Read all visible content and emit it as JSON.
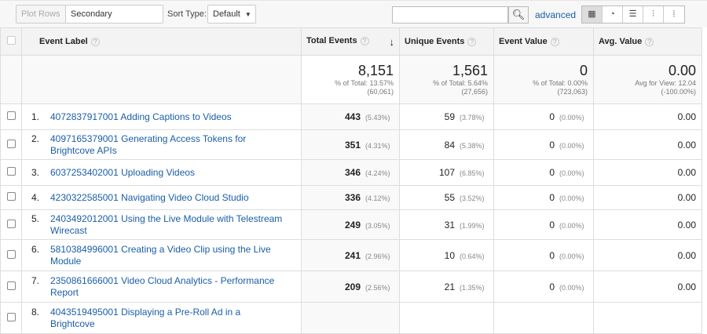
{
  "toolbar": {
    "plot_rows": "Plot Rows",
    "secondary_dimension": "Secondary dimension",
    "sort_type_label": "Sort Type:",
    "sort_type_value": "Default",
    "search_value": "",
    "advanced": "advanced",
    "views": [
      "table-icon",
      "pie-icon",
      "bar-icon",
      "comparison-icon",
      "pivot-icon"
    ]
  },
  "headers": {
    "label": "Event Label",
    "total": "Total Events",
    "unique": "Unique Events",
    "value": "Event Value",
    "avg": "Avg. Value"
  },
  "summary": {
    "total": {
      "value": "8,151",
      "pct": "% of Total: 13.57%",
      "of": "(60,061)"
    },
    "unique": {
      "value": "1,561",
      "pct": "% of Total: 5.64%",
      "of": "(27,656)"
    },
    "value": {
      "value": "0",
      "pct": "% of Total: 0.00%",
      "of": "(723,063)"
    },
    "avg": {
      "value": "0.00",
      "pct": "Avg for View: 12.04",
      "of": "(-100.00%)"
    }
  },
  "rows": [
    {
      "n": "1.",
      "label": "4072837917001 Adding Captions to Videos",
      "total": "443",
      "total_pct": "(5.43%)",
      "unique": "59",
      "unique_pct": "(3.78%)",
      "value": "0",
      "value_pct": "(0.00%)",
      "avg": "0.00"
    },
    {
      "n": "2.",
      "label": "4097165379001 Generating Access Tokens for Brightcove APIs",
      "total": "351",
      "total_pct": "(4.31%)",
      "unique": "84",
      "unique_pct": "(5.38%)",
      "value": "0",
      "value_pct": "(0.00%)",
      "avg": "0.00"
    },
    {
      "n": "3.",
      "label": "6037253402001 Uploading Videos",
      "total": "346",
      "total_pct": "(4.24%)",
      "unique": "107",
      "unique_pct": "(6.85%)",
      "value": "0",
      "value_pct": "(0.00%)",
      "avg": "0.00"
    },
    {
      "n": "4.",
      "label": "4230322585001 Navigating Video Cloud Studio",
      "total": "336",
      "total_pct": "(4.12%)",
      "unique": "55",
      "unique_pct": "(3.52%)",
      "value": "0",
      "value_pct": "(0.00%)",
      "avg": "0.00"
    },
    {
      "n": "5.",
      "label": "2403492012001 Using the Live Module with Telestream Wirecast",
      "total": "249",
      "total_pct": "(3.05%)",
      "unique": "31",
      "unique_pct": "(1.99%)",
      "value": "0",
      "value_pct": "(0.00%)",
      "avg": "0.00"
    },
    {
      "n": "6.",
      "label": "5810384996001 Creating a Video Clip using the Live Module",
      "total": "241",
      "total_pct": "(2.96%)",
      "unique": "10",
      "unique_pct": "(0.64%)",
      "value": "0",
      "value_pct": "(0.00%)",
      "avg": "0.00"
    },
    {
      "n": "7.",
      "label": "2350861666001 Video Cloud Analytics - Performance Report",
      "total": "209",
      "total_pct": "(2.56%)",
      "unique": "21",
      "unique_pct": "(1.35%)",
      "value": "0",
      "value_pct": "(0.00%)",
      "avg": "0.00"
    },
    {
      "n": "8.",
      "label": "4043519495001 Displaying a Pre-Roll Ad in a Brightcove",
      "total": "",
      "total_pct": "",
      "unique": "",
      "unique_pct": "",
      "value": "",
      "value_pct": "",
      "avg": ""
    }
  ]
}
